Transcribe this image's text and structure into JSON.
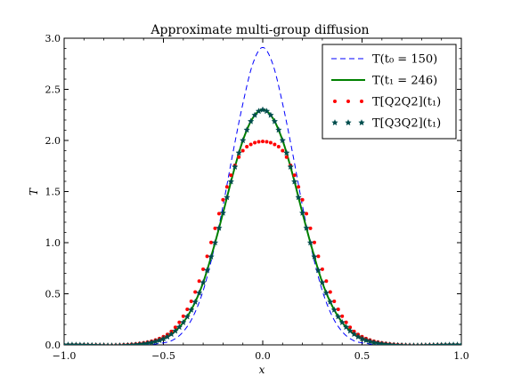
{
  "chart_data": {
    "type": "line",
    "title": "Approximate multi-group diffusion",
    "xlabel": "x",
    "ylabel": "T",
    "xlim": [
      -1.0,
      1.0
    ],
    "ylim": [
      0.0,
      3.0
    ],
    "xticks": [
      "−1.0",
      "−0.5",
      "0.0",
      "0.5",
      "1.0"
    ],
    "yticks": [
      "0.0",
      "0.5",
      "1.0",
      "1.5",
      "2.0",
      "2.5",
      "3.0"
    ],
    "grid": false,
    "legend_position": "top-right",
    "series": [
      {
        "name": "T(t₀ = 150)",
        "style": "dashed",
        "color": "#0000ff",
        "x": [
          -1.0,
          -0.5,
          -0.45,
          -0.4,
          -0.35,
          -0.3,
          -0.25,
          -0.2,
          -0.15,
          -0.1,
          -0.05,
          0.0,
          0.05,
          0.1,
          0.15,
          0.2,
          0.25,
          0.3,
          0.35,
          0.4,
          0.45,
          0.5,
          1.0
        ],
        "y": [
          0.0,
          0.02,
          0.05,
          0.13,
          0.28,
          0.53,
          0.9,
          1.36,
          1.88,
          2.36,
          2.75,
          2.91,
          2.75,
          2.36,
          1.88,
          1.36,
          0.9,
          0.53,
          0.28,
          0.13,
          0.05,
          0.02,
          0.0
        ]
      },
      {
        "name": "T(t₁ = 246)",
        "style": "solid",
        "color": "#008000",
        "x": [
          -1.0,
          -0.6,
          -0.5,
          -0.45,
          -0.4,
          -0.35,
          -0.3,
          -0.25,
          -0.2,
          -0.15,
          -0.1,
          -0.05,
          0.0,
          0.05,
          0.1,
          0.15,
          0.2,
          0.25,
          0.3,
          0.35,
          0.4,
          0.45,
          0.5,
          0.6,
          1.0
        ],
        "y": [
          0.0,
          0.01,
          0.06,
          0.12,
          0.22,
          0.38,
          0.61,
          0.93,
          1.29,
          1.67,
          2.0,
          2.22,
          2.3,
          2.22,
          2.0,
          1.67,
          1.29,
          0.93,
          0.61,
          0.38,
          0.22,
          0.12,
          0.06,
          0.01,
          0.0
        ]
      },
      {
        "name": "T[Q2Q2](t₁)",
        "style": "dots",
        "color": "#ff0000",
        "x": [
          -1.0,
          -0.6,
          -0.5,
          -0.45,
          -0.4,
          -0.35,
          -0.3,
          -0.25,
          -0.2,
          -0.15,
          -0.1,
          -0.05,
          0.0,
          0.05,
          0.1,
          0.15,
          0.2,
          0.25,
          0.3,
          0.35,
          0.4,
          0.45,
          0.5,
          0.6,
          1.0
        ],
        "y": [
          0.0,
          0.02,
          0.08,
          0.15,
          0.28,
          0.47,
          0.74,
          1.07,
          1.42,
          1.71,
          1.9,
          1.97,
          1.99,
          1.97,
          1.9,
          1.71,
          1.42,
          1.07,
          0.74,
          0.47,
          0.28,
          0.15,
          0.08,
          0.02,
          0.0
        ]
      },
      {
        "name": "T[Q3Q2](t₁)",
        "style": "stars",
        "color": "#004c4c",
        "x": [
          -1.0,
          -0.6,
          -0.5,
          -0.45,
          -0.4,
          -0.35,
          -0.3,
          -0.25,
          -0.2,
          -0.15,
          -0.1,
          -0.05,
          0.0,
          0.05,
          0.1,
          0.15,
          0.2,
          0.25,
          0.3,
          0.35,
          0.4,
          0.45,
          0.5,
          0.6,
          1.0
        ],
        "y": [
          0.0,
          0.01,
          0.06,
          0.12,
          0.22,
          0.38,
          0.61,
          0.93,
          1.29,
          1.67,
          2.0,
          2.22,
          2.3,
          2.22,
          2.0,
          1.67,
          1.29,
          0.93,
          0.61,
          0.38,
          0.22,
          0.12,
          0.06,
          0.01,
          0.0
        ]
      }
    ]
  }
}
